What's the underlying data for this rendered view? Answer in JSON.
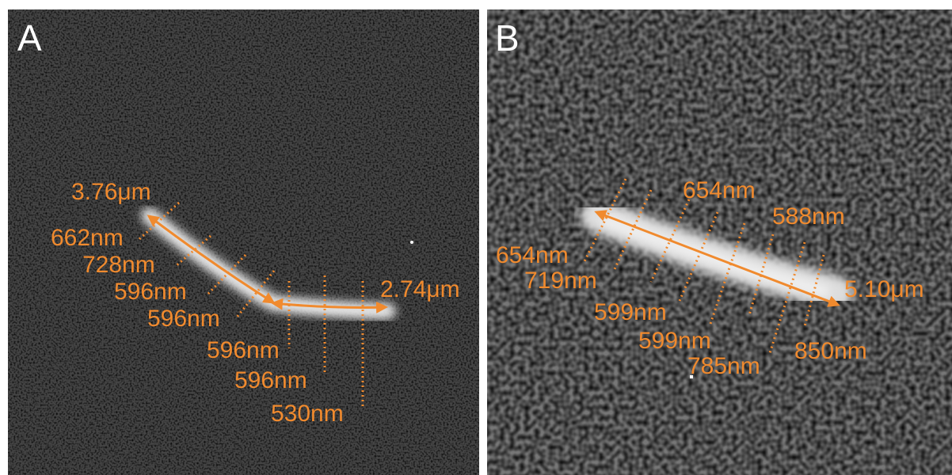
{
  "panels": [
    {
      "label": "A",
      "annotations": [
        "3.76μm",
        "662nm",
        "728nm",
        "596nm",
        "596nm",
        "596nm",
        "596nm",
        "530nm",
        "2.74μm"
      ]
    },
    {
      "label": "B",
      "annotations": [
        "654nm",
        "588nm",
        "654nm",
        "719nm",
        "5.10μm",
        "599nm",
        "599nm",
        "785nm",
        "850nm"
      ]
    }
  ]
}
